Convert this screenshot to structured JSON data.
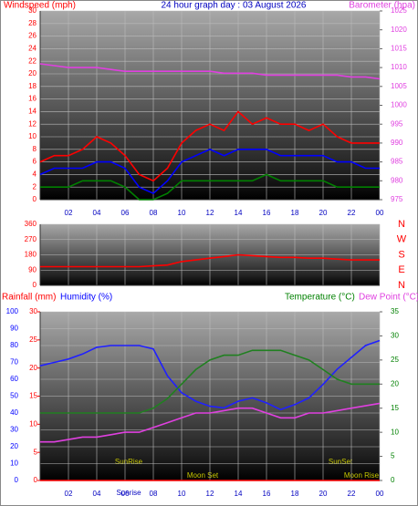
{
  "chart_data": [
    {
      "type": "line",
      "title": "24 hour graph day : 03 August 2026",
      "y_label": "Windspeed (mph)",
      "y2_label": "Barometer (hpa)",
      "x": [
        0,
        1,
        2,
        3,
        4,
        5,
        6,
        7,
        8,
        9,
        10,
        11,
        12,
        13,
        14,
        15,
        16,
        17,
        18,
        19,
        20,
        21,
        22,
        23,
        24
      ],
      "xlim": [
        0,
        24
      ],
      "xticks": [
        {
          "value": 2,
          "label": "02"
        },
        {
          "value": 4,
          "label": "04"
        },
        {
          "value": 6,
          "label": "06"
        },
        {
          "value": 8,
          "label": "08"
        },
        10,
        12,
        14,
        16,
        18,
        20,
        22,
        {
          "value": 24,
          "label": "00"
        }
      ],
      "ylim": [
        0,
        30
      ],
      "yticks": [
        0,
        2,
        4,
        6,
        8,
        10,
        12,
        14,
        16,
        18,
        20,
        22,
        24,
        26,
        28,
        30
      ],
      "y2lim": [
        975,
        1025
      ],
      "y2ticks": [
        975,
        980,
        985,
        990,
        995,
        1000,
        1005,
        1010,
        1015,
        1020,
        1025
      ],
      "grid": true,
      "series": [
        {
          "color": "#ff0000",
          "values": [
            6,
            7,
            7,
            8,
            10,
            9,
            7,
            4,
            3,
            5,
            9,
            11,
            12,
            11,
            14,
            12,
            13,
            12,
            12,
            11,
            12,
            10,
            9,
            9,
            9
          ]
        },
        {
          "color": "#0000ff",
          "values": [
            4,
            5,
            5,
            5,
            6,
            6,
            5,
            2,
            1,
            3,
            6,
            7,
            8,
            7,
            8,
            8,
            8,
            7,
            7,
            7,
            7,
            6,
            6,
            5,
            5
          ]
        },
        {
          "color": "#008000",
          "values": [
            2,
            2,
            2,
            3,
            3,
            3,
            2,
            0,
            0,
            1,
            3,
            3,
            3,
            3,
            3,
            3,
            4,
            3,
            3,
            3,
            3,
            2,
            2,
            2,
            2
          ]
        },
        {
          "color": "#e040e0",
          "axis": "y2",
          "values": [
            1011,
            1010.5,
            1010,
            1010,
            1010,
            1009.5,
            1009,
            1009,
            1009,
            1009,
            1009,
            1009,
            1009,
            1008.5,
            1008.5,
            1008.5,
            1008,
            1008,
            1008,
            1008,
            1008,
            1008,
            1007.5,
            1007.5,
            1007
          ]
        }
      ]
    },
    {
      "type": "line",
      "x": [
        0,
        1,
        2,
        3,
        4,
        5,
        6,
        7,
        8,
        9,
        10,
        11,
        12,
        13,
        14,
        15,
        16,
        17,
        18,
        19,
        20,
        21,
        22,
        23,
        24
      ],
      "xlim": [
        0,
        24
      ],
      "ylim": [
        0,
        360
      ],
      "yticks": [
        0,
        90,
        180,
        270,
        360
      ],
      "direction_labels": [
        "N",
        "W",
        "S",
        "E",
        "N"
      ],
      "series": [
        {
          "color": "#ff0000",
          "values": [
            110,
            110,
            110,
            110,
            110,
            110,
            110,
            110,
            115,
            120,
            140,
            150,
            160,
            170,
            180,
            175,
            170,
            165,
            165,
            160,
            160,
            155,
            150,
            150,
            150
          ]
        }
      ]
    },
    {
      "type": "line",
      "y3_label": "Rainfall (mm)",
      "y_label": "Humidity (%)",
      "y2_label": "Temperature (°C)",
      "y2b_label": "Dew Point (°C)",
      "x": [
        0,
        1,
        2,
        3,
        4,
        5,
        6,
        7,
        8,
        9,
        10,
        11,
        12,
        13,
        14,
        15,
        16,
        17,
        18,
        19,
        20,
        21,
        22,
        23,
        24
      ],
      "xlim": [
        0,
        24
      ],
      "xticks": [
        {
          "value": 2,
          "label": "02"
        },
        {
          "value": 4,
          "label": "04"
        },
        {
          "value": 6,
          "label": "06"
        },
        {
          "value": 8,
          "label": "08"
        },
        10,
        12,
        14,
        16,
        18,
        20,
        22,
        {
          "value": 24,
          "label": "00"
        }
      ],
      "x_annotation": "Sunrise",
      "ylim": [
        0,
        100
      ],
      "yticks": [
        0,
        10,
        20,
        30,
        40,
        50,
        60,
        70,
        80,
        90,
        100
      ],
      "y3lim": [
        0,
        30
      ],
      "y3ticks": [
        0,
        5,
        10,
        15,
        20,
        25,
        30
      ],
      "y2lim": [
        0,
        35
      ],
      "y2ticks": [
        0,
        5,
        10,
        15,
        20,
        25,
        30,
        35
      ],
      "annotations": [
        "SunRise",
        "SunSet",
        "Moon Set",
        "Moon Rise"
      ],
      "series": [
        {
          "color": "#2020ff",
          "values": [
            68,
            70,
            72,
            75,
            79,
            80,
            80,
            80,
            78,
            62,
            52,
            47,
            44,
            43,
            47,
            49,
            46,
            42,
            45,
            49,
            57,
            66,
            73,
            80,
            83
          ]
        },
        {
          "color": "#208020",
          "axis": "y2",
          "values": [
            14,
            14,
            14,
            14,
            14,
            14,
            14,
            14,
            15,
            17,
            20,
            23,
            25,
            26,
            26,
            27,
            27,
            27,
            26,
            25,
            23,
            21,
            20,
            20,
            20
          ]
        },
        {
          "color": "#e040e0",
          "axis": "y2",
          "values": [
            8,
            8,
            8.5,
            9,
            9,
            9.5,
            10,
            10,
            11,
            12,
            13,
            14,
            14,
            14.5,
            15,
            15,
            14,
            13,
            13,
            14,
            14,
            14.5,
            15,
            15.5,
            16
          ]
        },
        {
          "color": "#ff0000",
          "axis": "y3",
          "values": [
            0,
            0,
            0,
            0,
            0,
            0,
            0,
            0,
            0,
            0,
            0,
            0,
            0,
            0,
            0,
            0,
            0,
            0,
            0,
            0,
            0,
            0,
            0,
            0,
            0
          ]
        }
      ]
    }
  ]
}
